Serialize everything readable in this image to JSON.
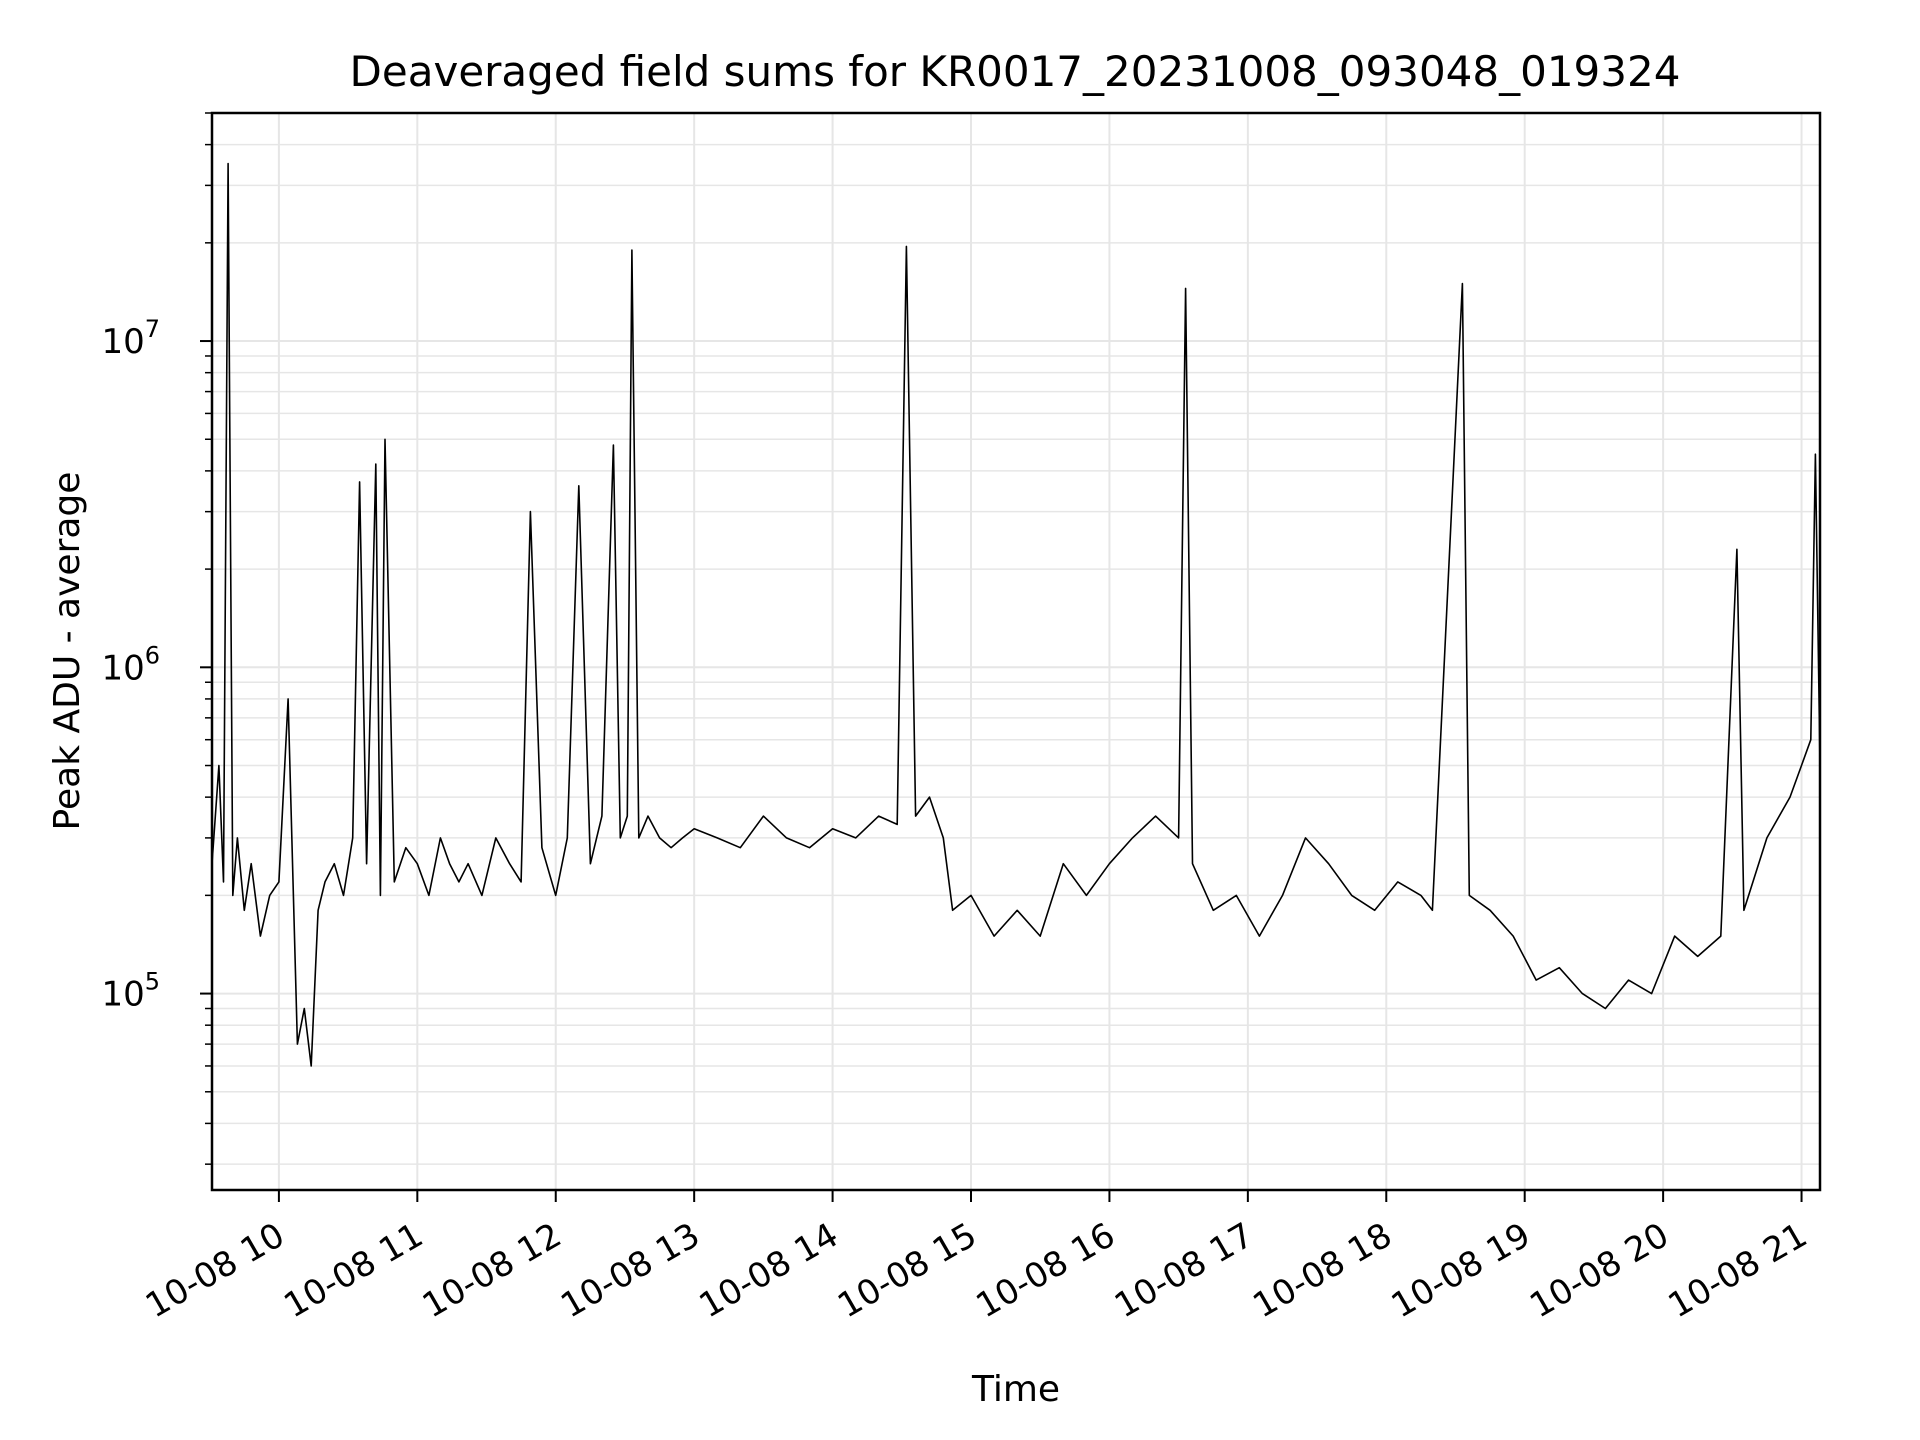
{
  "chart_data": {
    "type": "line",
    "title": "Deaveraged field sums for KR0017_20231008_093048_019324",
    "xlabel": "Time",
    "ylabel": "Peak ADU - average",
    "yscale": "log",
    "ylim": [
      25000,
      50000000
    ],
    "xlim": [
      "2023-10-08 09:31",
      "2023-10-08 21:08"
    ],
    "grid": true,
    "line_color": "#000000",
    "grid_color": "#e6e6e6",
    "x_ticks": [
      {
        "value": "2023-10-08 10:00",
        "label": "10-08 10"
      },
      {
        "value": "2023-10-08 11:00",
        "label": "10-08 11"
      },
      {
        "value": "2023-10-08 12:00",
        "label": "10-08 12"
      },
      {
        "value": "2023-10-08 13:00",
        "label": "10-08 13"
      },
      {
        "value": "2023-10-08 14:00",
        "label": "10-08 14"
      },
      {
        "value": "2023-10-08 15:00",
        "label": "10-08 15"
      },
      {
        "value": "2023-10-08 16:00",
        "label": "10-08 16"
      },
      {
        "value": "2023-10-08 17:00",
        "label": "10-08 17"
      },
      {
        "value": "2023-10-08 18:00",
        "label": "10-08 18"
      },
      {
        "value": "2023-10-08 19:00",
        "label": "10-08 19"
      },
      {
        "value": "2023-10-08 20:00",
        "label": "10-08 20"
      },
      {
        "value": "2023-10-08 21:00",
        "label": "10-08 21"
      }
    ],
    "y_ticks": [
      {
        "value": 100000,
        "base": "10",
        "exp": "5"
      },
      {
        "value": 1000000,
        "base": "10",
        "exp": "6"
      },
      {
        "value": 10000000,
        "base": "10",
        "exp": "7"
      }
    ],
    "series": [
      {
        "x": [
          "2023-10-08 09:31",
          "2023-10-08 09:34",
          "2023-10-08 09:36",
          "2023-10-08 09:38",
          "2023-10-08 09:40",
          "2023-10-08 09:42",
          "2023-10-08 09:45",
          "2023-10-08 09:48",
          "2023-10-08 09:52",
          "2023-10-08 09:56",
          "2023-10-08 10:00",
          "2023-10-08 10:04",
          "2023-10-08 10:08",
          "2023-10-08 10:11",
          "2023-10-08 10:14",
          "2023-10-08 10:17",
          "2023-10-08 10:20",
          "2023-10-08 10:24",
          "2023-10-08 10:28",
          "2023-10-08 10:32",
          "2023-10-08 10:35",
          "2023-10-08 10:38",
          "2023-10-08 10:42",
          "2023-10-08 10:44",
          "2023-10-08 10:46",
          "2023-10-08 10:50",
          "2023-10-08 10:55",
          "2023-10-08 11:00",
          "2023-10-08 11:05",
          "2023-10-08 11:10",
          "2023-10-08 11:14",
          "2023-10-08 11:18",
          "2023-10-08 11:22",
          "2023-10-08 11:28",
          "2023-10-08 11:34",
          "2023-10-08 11:40",
          "2023-10-08 11:45",
          "2023-10-08 11:49",
          "2023-10-08 11:54",
          "2023-10-08 12:00",
          "2023-10-08 12:05",
          "2023-10-08 12:10",
          "2023-10-08 12:15",
          "2023-10-08 12:20",
          "2023-10-08 12:25",
          "2023-10-08 12:28",
          "2023-10-08 12:31",
          "2023-10-08 12:33",
          "2023-10-08 12:36",
          "2023-10-08 12:40",
          "2023-10-08 12:45",
          "2023-10-08 12:50",
          "2023-10-08 12:55",
          "2023-10-08 13:00",
          "2023-10-08 13:10",
          "2023-10-08 13:20",
          "2023-10-08 13:30",
          "2023-10-08 13:40",
          "2023-10-08 13:50",
          "2023-10-08 14:00",
          "2023-10-08 14:10",
          "2023-10-08 14:20",
          "2023-10-08 14:28",
          "2023-10-08 14:32",
          "2023-10-08 14:36",
          "2023-10-08 14:42",
          "2023-10-08 14:48",
          "2023-10-08 14:52",
          "2023-10-08 15:00",
          "2023-10-08 15:10",
          "2023-10-08 15:20",
          "2023-10-08 15:30",
          "2023-10-08 15:40",
          "2023-10-08 15:50",
          "2023-10-08 16:00",
          "2023-10-08 16:10",
          "2023-10-08 16:20",
          "2023-10-08 16:30",
          "2023-10-08 16:33",
          "2023-10-08 16:36",
          "2023-10-08 16:45",
          "2023-10-08 16:55",
          "2023-10-08 17:05",
          "2023-10-08 17:15",
          "2023-10-08 17:25",
          "2023-10-08 17:35",
          "2023-10-08 17:45",
          "2023-10-08 17:55",
          "2023-10-08 18:05",
          "2023-10-08 18:15",
          "2023-10-08 18:20",
          "2023-10-08 18:33",
          "2023-10-08 18:36",
          "2023-10-08 18:45",
          "2023-10-08 18:55",
          "2023-10-08 19:05",
          "2023-10-08 19:15",
          "2023-10-08 19:25",
          "2023-10-08 19:35",
          "2023-10-08 19:45",
          "2023-10-08 19:55",
          "2023-10-08 20:05",
          "2023-10-08 20:15",
          "2023-10-08 20:25",
          "2023-10-08 20:32",
          "2023-10-08 20:35",
          "2023-10-08 20:45",
          "2023-10-08 20:55",
          "2023-10-08 21:00",
          "2023-10-08 21:04",
          "2023-10-08 21:06",
          "2023-10-08 21:08"
        ],
        "y": [
          250000,
          500000,
          220000,
          35000000,
          200000,
          300000,
          180000,
          250000,
          150000,
          200000,
          220000,
          800000,
          70000,
          90000,
          60000,
          180000,
          220000,
          250000,
          200000,
          300000,
          3700000,
          250000,
          4200000,
          200000,
          5000000,
          220000,
          280000,
          250000,
          200000,
          300000,
          250000,
          220000,
          250000,
          200000,
          300000,
          250000,
          220000,
          3000000,
          280000,
          200000,
          300000,
          3600000,
          250000,
          350000,
          4800000,
          300000,
          350000,
          19000000,
          300000,
          350000,
          300000,
          280000,
          300000,
          320000,
          300000,
          280000,
          350000,
          300000,
          280000,
          320000,
          300000,
          350000,
          330000,
          19500000,
          350000,
          400000,
          300000,
          180000,
          200000,
          150000,
          180000,
          150000,
          250000,
          200000,
          250000,
          300000,
          350000,
          300000,
          14500000,
          250000,
          180000,
          200000,
          150000,
          200000,
          300000,
          250000,
          200000,
          180000,
          220000,
          200000,
          180000,
          15000000,
          200000,
          180000,
          150000,
          110000,
          120000,
          100000,
          90000,
          110000,
          100000,
          150000,
          130000,
          150000,
          2300000,
          180000,
          300000,
          400000,
          500000,
          600000,
          4500000,
          500000
        ]
      }
    ]
  }
}
